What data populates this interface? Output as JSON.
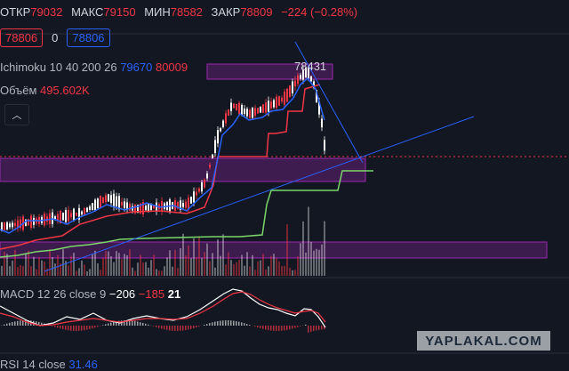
{
  "ohlc": [
    {
      "label": "ОТКР",
      "value": "79032"
    },
    {
      "label": "МАКС",
      "value": "79150"
    },
    {
      "label": "МИН",
      "value": "78582"
    },
    {
      "label": "ЗАКР",
      "value": "78809"
    }
  ],
  "change": "−224 (−0.28%)",
  "price_row": {
    "bid": "78806",
    "spread": "0",
    "ask": "78806"
  },
  "ichimoku": {
    "name": "Ichimoku",
    "params": "10 40 200 26",
    "v1": "79670",
    "v2": "80009"
  },
  "volume": {
    "label": "Объём",
    "value": "495.602K"
  },
  "peak_label": "78431",
  "macd": {
    "name": "MACD",
    "params": "12 26 close 9",
    "v1": "−206",
    "v2": "−185",
    "v3": "21"
  },
  "rsi": {
    "name": "RSI",
    "params": "14 close",
    "value": "31.46"
  },
  "watermark": "YAPLAKAL.COM",
  "icons": {
    "collapse": "chevron-up-icon"
  },
  "colors": {
    "background": "#131722",
    "up": "#ffffff",
    "down": "#f23645",
    "blue": "#2962ff",
    "green": "#7bd66a",
    "zone": "#9c27b0"
  }
}
